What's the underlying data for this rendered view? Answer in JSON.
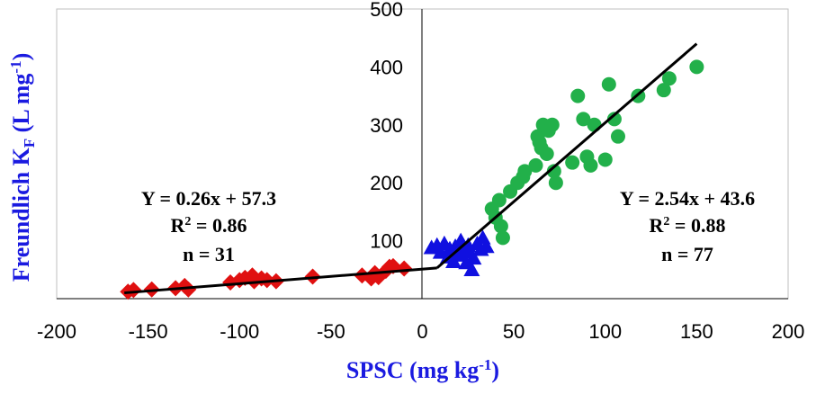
{
  "colors": {
    "red": "#e01010",
    "blue": "#1010e0",
    "green": "#22b04a",
    "fit_line": "#000000",
    "axis_title": "#1a1ae0"
  },
  "chart_data": {
    "type": "scatter",
    "xlabel": "SPSC (mg kg⁻¹)",
    "ylabel": "Freundlich K_F (L mg⁻¹)",
    "xlim": [
      -200,
      200
    ],
    "ylim": [
      0,
      500
    ],
    "x_ticks": [
      "-200",
      "-150",
      "-100",
      "-50",
      "0",
      "50",
      "100",
      "150",
      "200"
    ],
    "y_ticks": [
      "500",
      "400",
      "300",
      "200",
      "100"
    ],
    "grid": false,
    "series": [
      {
        "marker": "diamond",
        "color": "red",
        "points": [
          [
            -161,
            12
          ],
          [
            -158,
            15
          ],
          [
            -148,
            16
          ],
          [
            -135,
            18
          ],
          [
            -130,
            22
          ],
          [
            -128,
            16
          ],
          [
            -105,
            28
          ],
          [
            -100,
            32
          ],
          [
            -97,
            36
          ],
          [
            -93,
            40
          ],
          [
            -92,
            30
          ],
          [
            -88,
            35
          ],
          [
            -85,
            32
          ],
          [
            -80,
            30
          ],
          [
            -60,
            38
          ],
          [
            -33,
            40
          ],
          [
            -28,
            35
          ],
          [
            -26,
            44
          ],
          [
            -24,
            37
          ],
          [
            -20,
            48
          ],
          [
            -18,
            55
          ],
          [
            -16,
            56
          ],
          [
            -10,
            52
          ]
        ]
      },
      {
        "marker": "triangle",
        "color": "blue",
        "points": [
          [
            5,
            88
          ],
          [
            8,
            92
          ],
          [
            10,
            80
          ],
          [
            12,
            95
          ],
          [
            14,
            72
          ],
          [
            15,
            86
          ],
          [
            17,
            64
          ],
          [
            18,
            90
          ],
          [
            20,
            75
          ],
          [
            21,
            100
          ],
          [
            22,
            85
          ],
          [
            24,
            62
          ],
          [
            25,
            92
          ],
          [
            26,
            80
          ],
          [
            27,
            50
          ],
          [
            28,
            70
          ],
          [
            30,
            95
          ],
          [
            32,
            85
          ],
          [
            33,
            105
          ],
          [
            35,
            90
          ]
        ]
      },
      {
        "marker": "circle",
        "color": "green",
        "points": [
          [
            38,
            155
          ],
          [
            40,
            140
          ],
          [
            42,
            170
          ],
          [
            43,
            125
          ],
          [
            44,
            105
          ],
          [
            48,
            185
          ],
          [
            52,
            200
          ],
          [
            55,
            210
          ],
          [
            56,
            220
          ],
          [
            62,
            230
          ],
          [
            63,
            280
          ],
          [
            64,
            270
          ],
          [
            65,
            260
          ],
          [
            66,
            300
          ],
          [
            68,
            250
          ],
          [
            69,
            290
          ],
          [
            71,
            300
          ],
          [
            72,
            220
          ],
          [
            73,
            200
          ],
          [
            82,
            235
          ],
          [
            85,
            350
          ],
          [
            88,
            310
          ],
          [
            90,
            245
          ],
          [
            92,
            230
          ],
          [
            94,
            300
          ],
          [
            100,
            240
          ],
          [
            102,
            370
          ],
          [
            105,
            310
          ],
          [
            107,
            280
          ],
          [
            118,
            350
          ],
          [
            132,
            360
          ],
          [
            135,
            380
          ],
          [
            150,
            400
          ]
        ]
      }
    ],
    "fit_lines": [
      {
        "from": [
          -163,
          10
        ],
        "to": [
          8,
          53
        ]
      },
      {
        "from": [
          8,
          53
        ],
        "to": [
          150,
          440
        ]
      }
    ],
    "annotations": [
      {
        "position": "left",
        "equation": "Y = 0.26x + 57.3",
        "r2_prefix": "R",
        "r2_sup": "2",
        "r2_value": " = 0.86",
        "n": "n = 31"
      },
      {
        "position": "right",
        "equation": "Y = 2.54x + 43.6",
        "r2_prefix": "R",
        "r2_sup": "2",
        "r2_value": " = 0.88",
        "n": "n = 77"
      }
    ],
    "axis_titles": {
      "x_main": "SPSC (mg kg",
      "x_sup": "-1",
      "x_close": ")",
      "y_main": "Freundlich K",
      "y_sub": "F",
      "y_mid": " (L mg",
      "y_sup": "-1",
      "y_close": ")"
    }
  }
}
